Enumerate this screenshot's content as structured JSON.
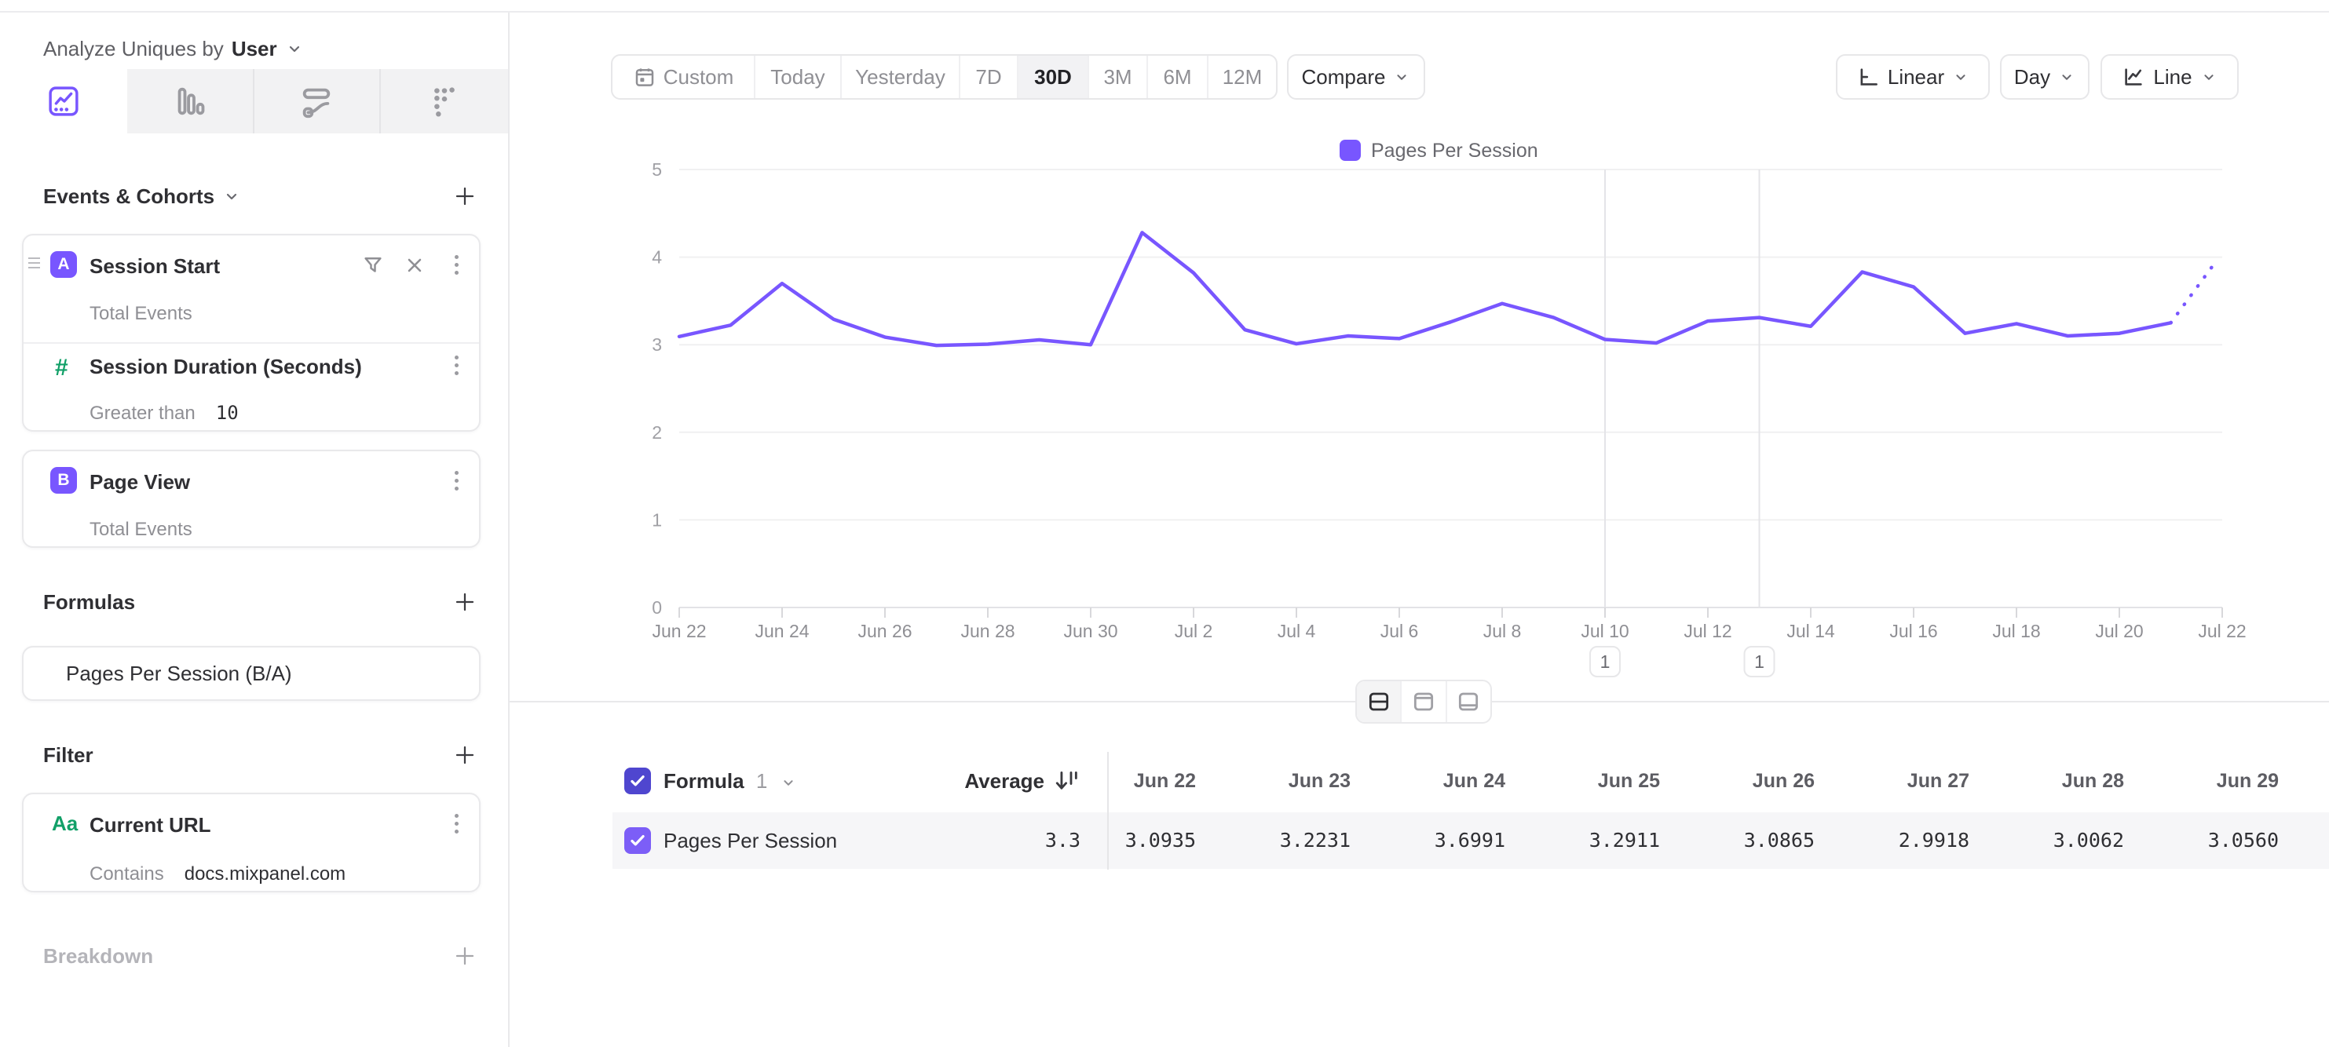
{
  "sidebar": {
    "analyze_label": "Analyze Uniques by",
    "analyze_value": "User",
    "tabs": [
      "insights-line",
      "bar-chart",
      "flows",
      "retention-dots"
    ],
    "events_title": "Events & Cohorts",
    "events": [
      {
        "badge": "A",
        "name": "Session Start",
        "metric": "Total Events",
        "inline_filter": {
          "type_glyph": "#",
          "name": "Session Duration (Seconds)",
          "operator": "Greater than",
          "value": "10"
        }
      },
      {
        "badge": "B",
        "name": "Page View",
        "metric": "Total Events"
      }
    ],
    "formulas_title": "Formulas",
    "formulas": [
      {
        "name": "Pages Per Session (B/A)"
      }
    ],
    "filter_title": "Filter",
    "filters": [
      {
        "type_glyph": "Aa",
        "name": "Current URL",
        "operator": "Contains",
        "value": "docs.mixpanel.com"
      }
    ],
    "breakdown_title": "Breakdown"
  },
  "toolbar": {
    "ranges": [
      "Custom",
      "Today",
      "Yesterday",
      "7D",
      "30D",
      "3M",
      "6M",
      "12M"
    ],
    "selected_range": "30D",
    "compare_label": "Compare",
    "scale_label": "Linear",
    "interval_label": "Day",
    "chart_type_label": "Line"
  },
  "chart_data": {
    "type": "line",
    "series_name": "Pages Per Session",
    "x": [
      "Jun 22",
      "Jun 23",
      "Jun 24",
      "Jun 25",
      "Jun 26",
      "Jun 27",
      "Jun 28",
      "Jun 29",
      "Jun 30",
      "Jul 1",
      "Jul 2",
      "Jul 3",
      "Jul 4",
      "Jul 5",
      "Jul 6",
      "Jul 7",
      "Jul 8",
      "Jul 9",
      "Jul 10",
      "Jul 11",
      "Jul 12",
      "Jul 13",
      "Jul 14",
      "Jul 15",
      "Jul 16",
      "Jul 17",
      "Jul 18",
      "Jul 19",
      "Jul 20",
      "Jul 21",
      "Jul 22"
    ],
    "values": [
      3.0935,
      3.2231,
      3.6991,
      3.2911,
      3.0865,
      2.9918,
      3.0062,
      3.056,
      3.0,
      4.28,
      3.82,
      3.17,
      3.01,
      3.1,
      3.07,
      3.26,
      3.47,
      3.31,
      3.06,
      3.02,
      3.27,
      3.31,
      3.21,
      3.83,
      3.66,
      3.13,
      3.24,
      3.1,
      3.13,
      3.25,
      3.95
    ],
    "last_point_incomplete": true,
    "ylim": [
      0,
      5
    ],
    "yticks": [
      0,
      1,
      2,
      3,
      4,
      5
    ],
    "xtick_every": 2,
    "grid": true,
    "legend_position": "top-center",
    "annotations": [
      {
        "x": "Jul 10",
        "label": "1"
      },
      {
        "x": "Jul 13",
        "label": "1"
      }
    ],
    "line_color": "#7856ff"
  },
  "table": {
    "group_label": "Formula",
    "group_index": "1",
    "average_label": "Average",
    "average_value": "3.3",
    "row_label": "Pages Per Session",
    "columns": [
      "Jun 22",
      "Jun 23",
      "Jun 24",
      "Jun 25",
      "Jun 26",
      "Jun 27",
      "Jun 28",
      "Jun 29"
    ],
    "values": [
      "3.0935",
      "3.2231",
      "3.6991",
      "3.2911",
      "3.0865",
      "2.9918",
      "3.0062",
      "3.0560"
    ]
  },
  "colors": {
    "accent": "#7856ff",
    "green": "#12a068",
    "checkbox_all": "#4f46cf",
    "checkbox_row": "#7c5ef7",
    "grid": "#f0f0f1",
    "axis_text": "#9b9ba0"
  }
}
